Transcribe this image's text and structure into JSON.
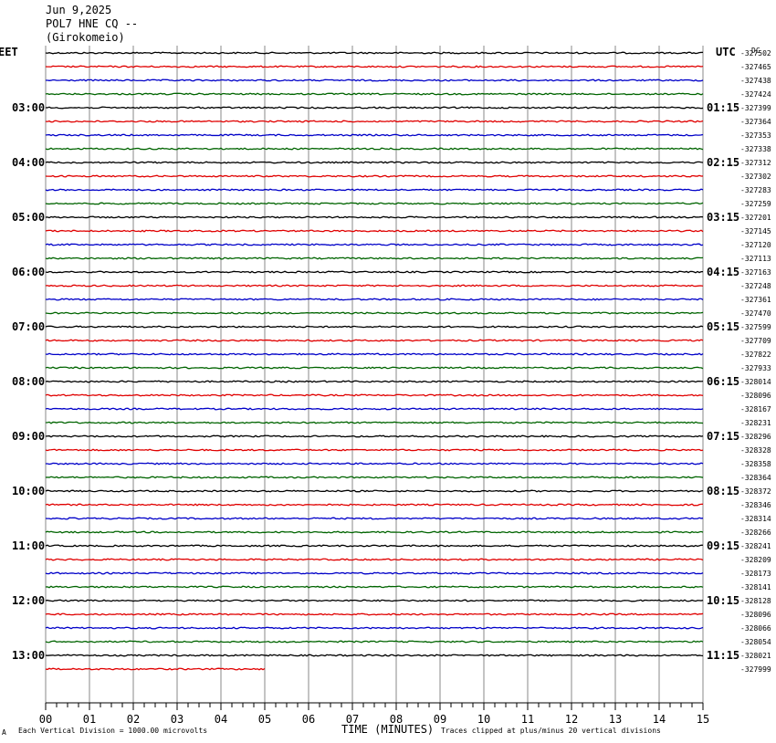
{
  "header": {
    "date": "Jun 9,2025",
    "station": "POL7 HNE CQ --",
    "location": "(Girokomeio)"
  },
  "axes": {
    "left_label": "EET",
    "right_label": "UTC",
    "corner_label": "DC",
    "xlabel": "TIME (MINUTES)"
  },
  "footer": {
    "left_mark": "A",
    "scale_note": "Each Vertical Division = 1000.00 microvolts",
    "clip_note": "Traces clipped at plus/minus 20 vertical divisions"
  },
  "colors": {
    "trace_cycle": [
      "#000000",
      "#e00000",
      "#0000c8",
      "#006400"
    ],
    "grid": "#888888"
  },
  "chart_data": {
    "type": "line",
    "title": "",
    "xlim": [
      0,
      15
    ],
    "x_ticks": [
      "00",
      "01",
      "02",
      "03",
      "04",
      "05",
      "06",
      "07",
      "08",
      "09",
      "10",
      "11",
      "12",
      "13",
      "14",
      "15"
    ],
    "minutes_per_trace": 15,
    "grid": true,
    "hour_labels_left": [
      "03:00",
      "04:00",
      "05:00",
      "06:00",
      "07:00",
      "08:00",
      "09:00",
      "10:00",
      "11:00",
      "12:00",
      "13:00"
    ],
    "hour_labels_right": [
      "01:15",
      "02:15",
      "03:15",
      "04:15",
      "05:15",
      "06:15",
      "07:15",
      "08:15",
      "09:15",
      "10:15",
      "11:15"
    ],
    "dc_offsets": [
      "-327502",
      "-327465",
      "-327438",
      "-327424",
      "-327399",
      "-327364",
      "-327353",
      "-327338",
      "-327312",
      "-327302",
      "-327283",
      "-327259",
      "-327201",
      "-327145",
      "-327120",
      "-327113",
      "-327163",
      "-327248",
      "-327361",
      "-327470",
      "-327599",
      "-327709",
      "-327822",
      "-327933",
      "-328014",
      "-328096",
      "-328167",
      "-328231",
      "-328296",
      "-328328",
      "-328358",
      "-328364",
      "-328372",
      "-328346",
      "-328314",
      "-328266",
      "-328241",
      "-328209",
      "-328173",
      "-328141",
      "-328128",
      "-328096",
      "-328066",
      "-328054",
      "-328021",
      "-327999"
    ],
    "last_trace_end_minute": 5
  }
}
